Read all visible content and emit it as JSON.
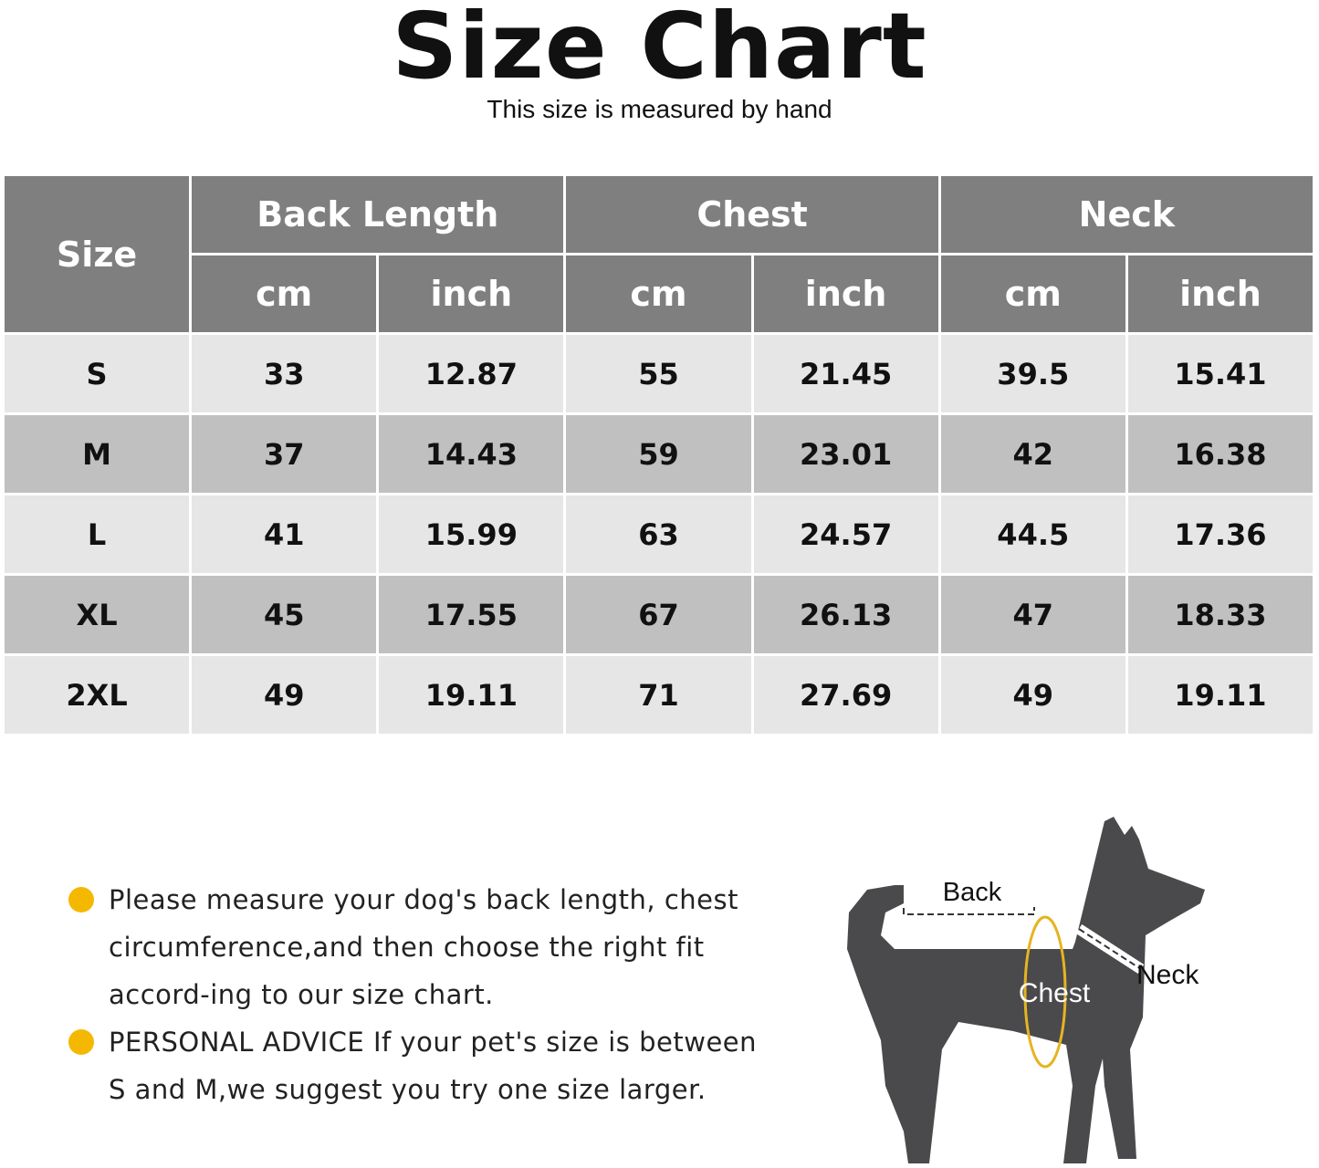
{
  "title": "Size Chart",
  "subtitle": "This size is measured by hand",
  "table": {
    "size_header": "Size",
    "groups": [
      "Back Length",
      "Chest",
      "Neck"
    ],
    "units": [
      "cm",
      "inch",
      "cm",
      "inch",
      "cm",
      "inch"
    ],
    "rows": [
      [
        "S",
        "33",
        "12.87",
        "55",
        "21.45",
        "39.5",
        "15.41"
      ],
      [
        "M",
        "37",
        "14.43",
        "59",
        "23.01",
        "42",
        "16.38"
      ],
      [
        "L",
        "41",
        "15.99",
        "63",
        "24.57",
        "44.5",
        "17.36"
      ],
      [
        "XL",
        "45",
        "17.55",
        "67",
        "26.13",
        "47",
        "18.33"
      ],
      [
        "2XL",
        "49",
        "19.11",
        "71",
        "27.69",
        "49",
        "19.11"
      ]
    ]
  },
  "notes": [
    [
      "Please measure your dog's back length, chest",
      "circumference,and then choose the right fit",
      "accord-ing to our size chart."
    ],
    [
      "PERSONAL ADVICE If your pet's size is between",
      "S and M,we suggest you try one size larger."
    ]
  ],
  "diagram": {
    "back": "Back",
    "chest": "Chest",
    "neck": "Neck"
  },
  "colors": {
    "header": "#7f7f7f",
    "row_light": "#e6e6e6",
    "row_dark": "#c0c0c0",
    "bullet": "#f5b800",
    "dog": "#4a4a4c"
  }
}
